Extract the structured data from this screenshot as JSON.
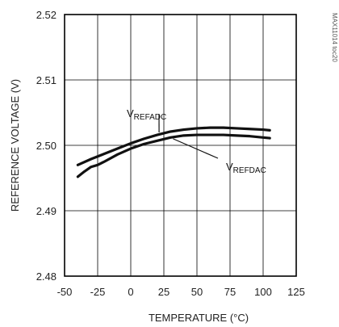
{
  "chart_data": {
    "type": "line",
    "title": "",
    "xlabel": "TEMPERATURE (°C)",
    "ylabel": "REFERENCE VOLTAGE (V)",
    "xlim": [
      -50,
      125
    ],
    "ylim": [
      2.48,
      2.52
    ],
    "x_ticks": [
      -50,
      -25,
      0,
      25,
      50,
      75,
      100,
      125
    ],
    "y_ticks": [
      2.48,
      2.49,
      2.5,
      2.51,
      2.52
    ],
    "x_tick_labels": [
      "-50",
      "-25",
      "0",
      "25",
      "50",
      "75",
      "100",
      "125"
    ],
    "y_tick_labels": [
      "2.48",
      "2.49",
      "2.50",
      "2.51",
      "2.52"
    ],
    "grid": true,
    "watermark": "MAX11014 toc20",
    "series": [
      {
        "name": "VREFADC",
        "label_main": "V",
        "label_sub": "REFADC",
        "x": [
          -40,
          -30,
          -20,
          -10,
          0,
          10,
          20,
          30,
          40,
          50,
          60,
          70,
          80,
          90,
          100,
          105
        ],
        "y": [
          2.497,
          2.4979,
          2.4987,
          2.4995,
          2.5003,
          2.501,
          2.5016,
          2.5021,
          2.5024,
          2.5026,
          2.5027,
          2.5027,
          2.5026,
          2.5025,
          2.5024,
          2.5023
        ]
      },
      {
        "name": "VREFDAC",
        "label_main": "V",
        "label_sub": "REFDAC",
        "x": [
          -40,
          -35,
          -30,
          -25,
          -20,
          -10,
          0,
          10,
          20,
          30,
          40,
          50,
          60,
          70,
          80,
          90,
          100,
          105
        ],
        "y": [
          2.4952,
          2.496,
          2.4967,
          2.497,
          2.4975,
          2.4986,
          2.4995,
          2.5002,
          2.5007,
          2.5012,
          2.5015,
          2.5016,
          2.5016,
          2.5016,
          2.5015,
          2.5014,
          2.5012,
          2.5011
        ]
      }
    ]
  }
}
